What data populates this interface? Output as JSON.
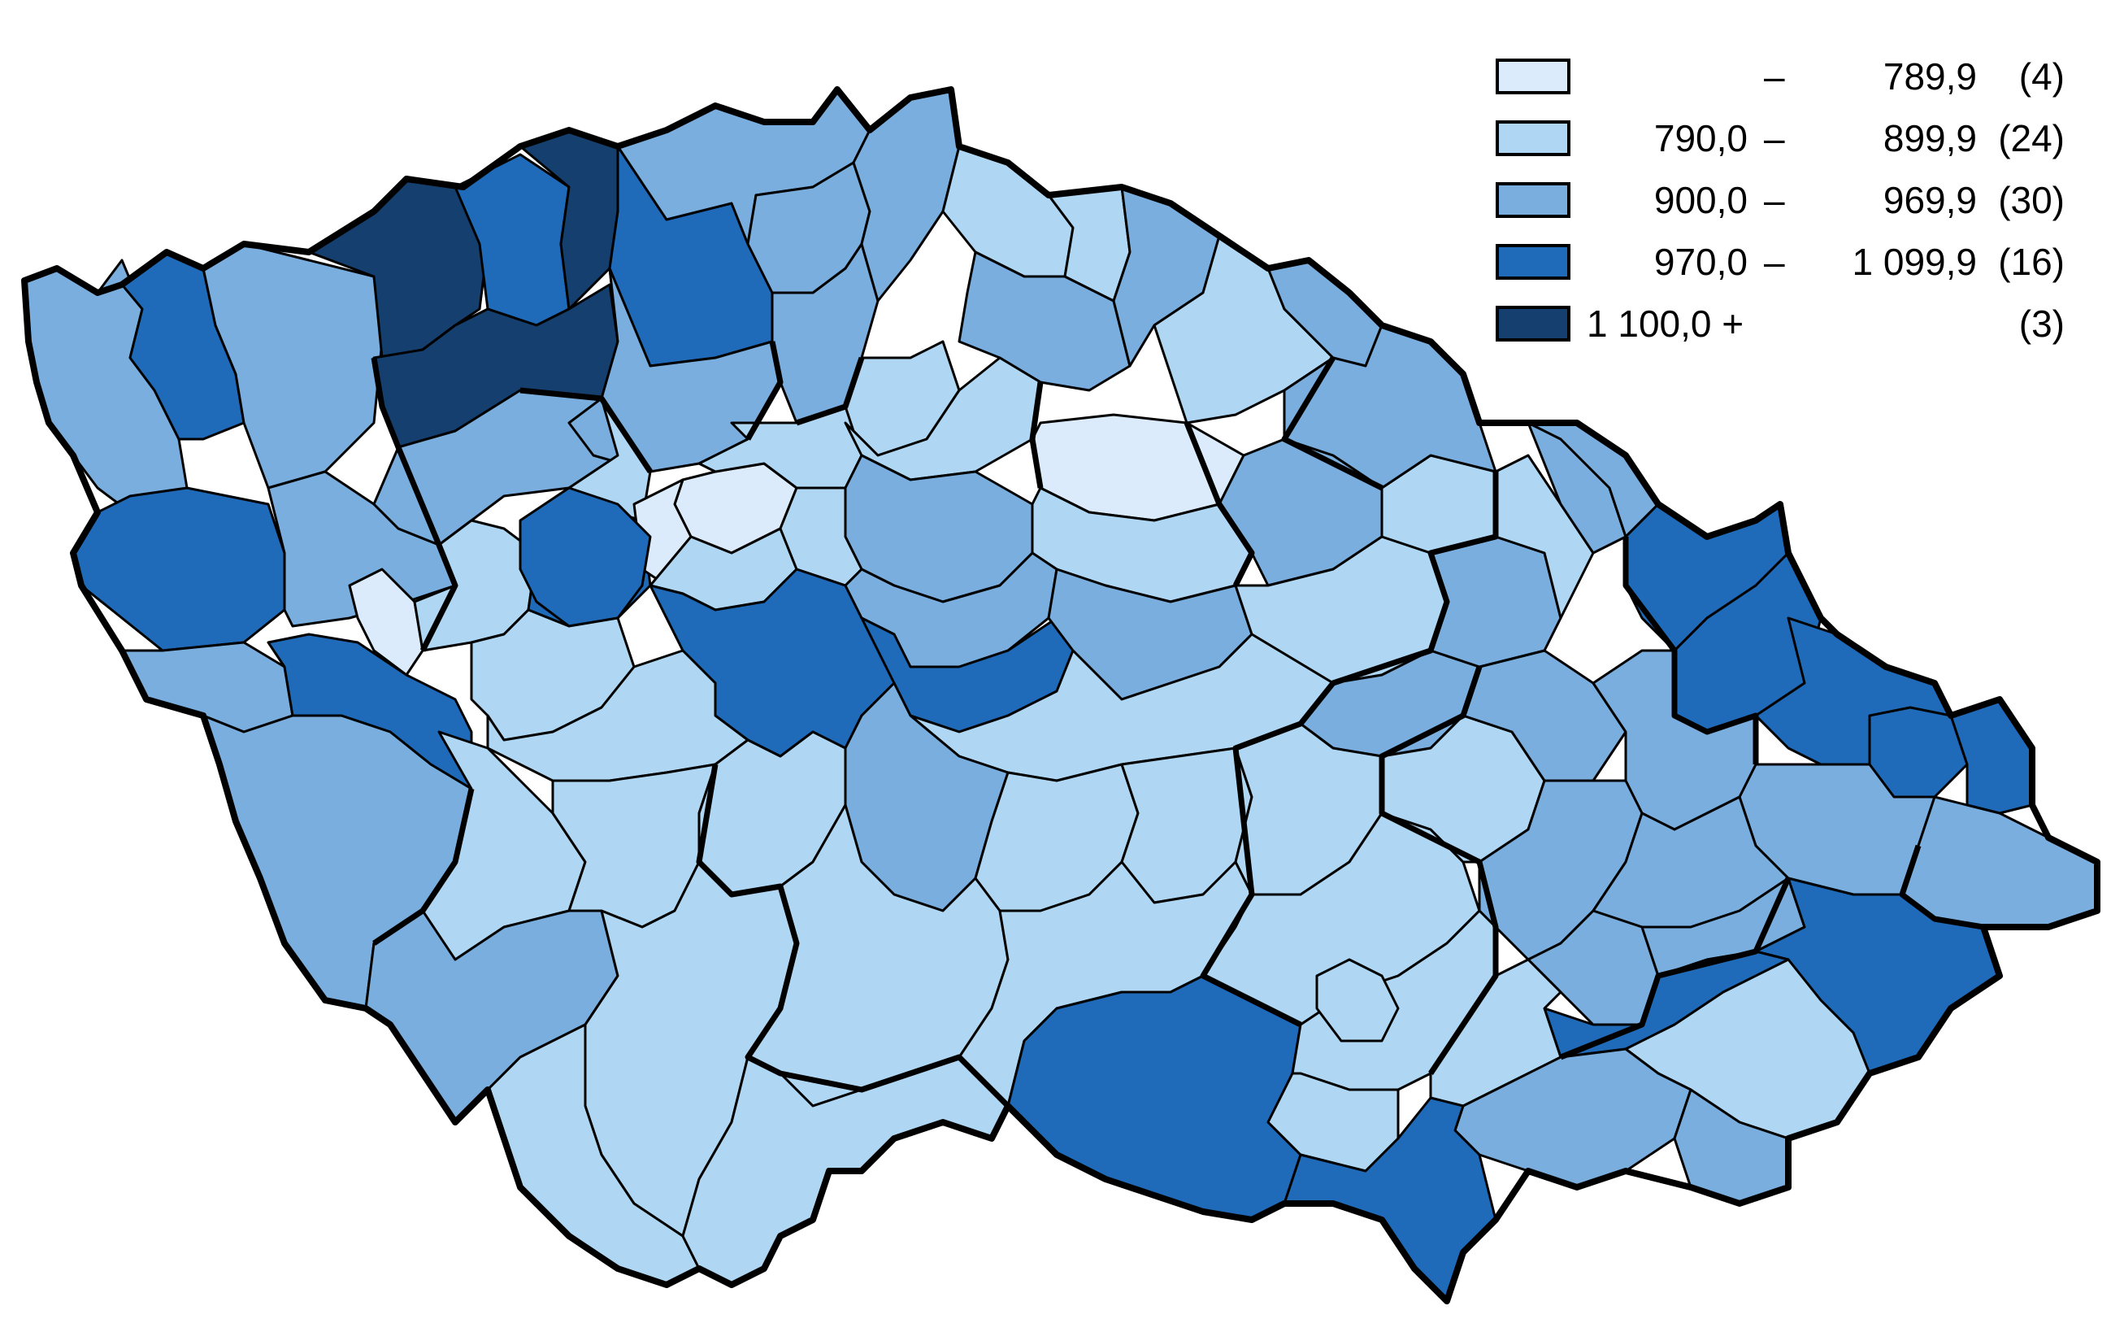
{
  "colors": {
    "class1": "#dcebfb",
    "class2": "#afd7f3",
    "class3": "#79aede",
    "class4": "#1f6bb9",
    "class5": "#143f6e"
  },
  "legend": [
    {
      "from": "",
      "dash": "–",
      "to": "789,9",
      "count": "(4)",
      "color_key": "class1"
    },
    {
      "from": "790,0",
      "dash": "–",
      "to": "899,9",
      "count": "(24)",
      "color_key": "class2"
    },
    {
      "from": "900,0",
      "dash": "–",
      "to": "969,9",
      "count": "(30)",
      "color_key": "class3"
    },
    {
      "from": "970,0",
      "dash": "–",
      "to": "1 099,9",
      "count": "(16)",
      "color_key": "class4"
    },
    {
      "from": "1 100,0 +",
      "dash": "",
      "to": "",
      "count": "(3)",
      "color_key": "class5"
    }
  ]
}
